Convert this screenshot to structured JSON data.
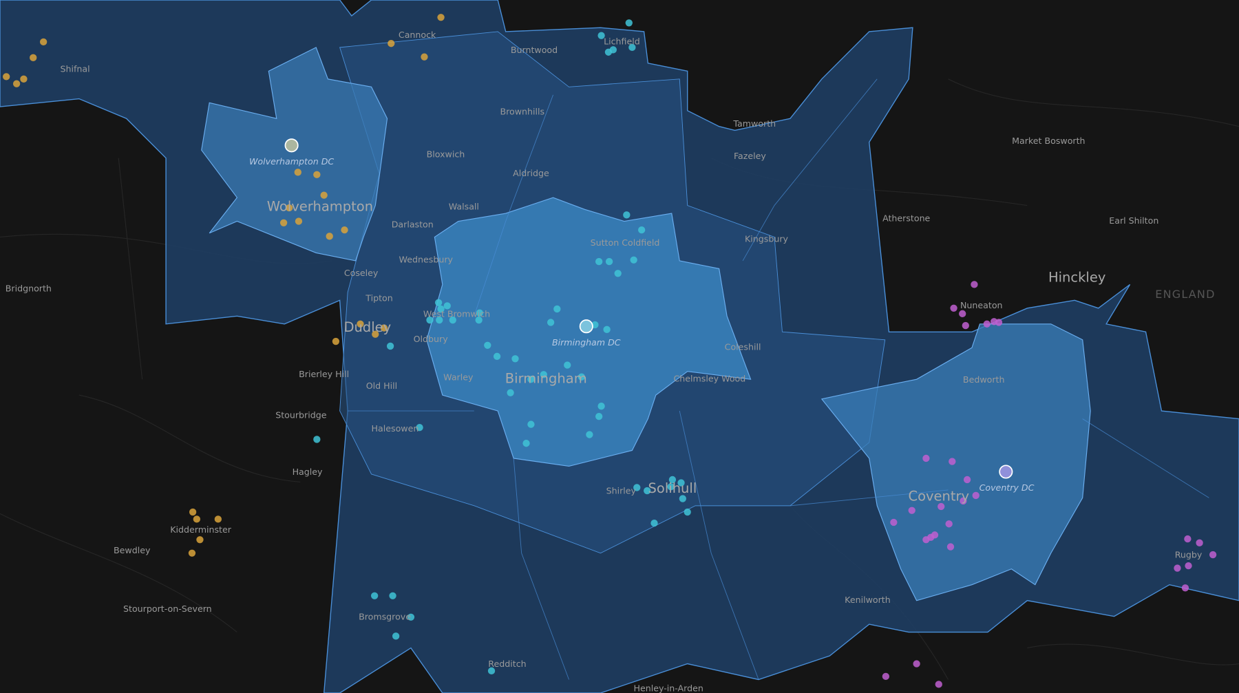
{
  "map": {
    "places": [
      "Shifnal",
      "Cannock",
      "Burntwood",
      "Lichfield",
      "Brownhills",
      "Tamworth",
      "Market Bosworth",
      "Bloxwich",
      "Fazeley",
      "Aldridge",
      "Walsall",
      "Atherstone",
      "Earl Shilton",
      "Darlaston",
      "Kingsbury",
      "Sutton Coldfield",
      "Wednesbury",
      "Coseley",
      "Bridgnorth",
      "Tipton",
      "Nuneaton",
      "West Bromwich",
      "Oldbury",
      "Coleshill",
      "Brierley Hill",
      "Warley",
      "Chelmsley Wood",
      "Bedworth",
      "Old Hill",
      "Stourbridge",
      "Halesowen",
      "Hagley",
      "Shirley",
      "Kidderminster",
      "Bewdley",
      "Rugby",
      "Kenilworth",
      "Stourport-on-Severn",
      "Bromsgrove",
      "Redditch",
      "Henley-in-Arden"
    ],
    "major_places": [
      "Wolverhampton",
      "Hinckley",
      "Dudley",
      "Birmingham",
      "Solihull",
      "Coventry"
    ],
    "region_label": "ENGLAND",
    "depots": [
      "Wolverhampton DC",
      "Birmingham DC",
      "Coventry DC"
    ]
  }
}
